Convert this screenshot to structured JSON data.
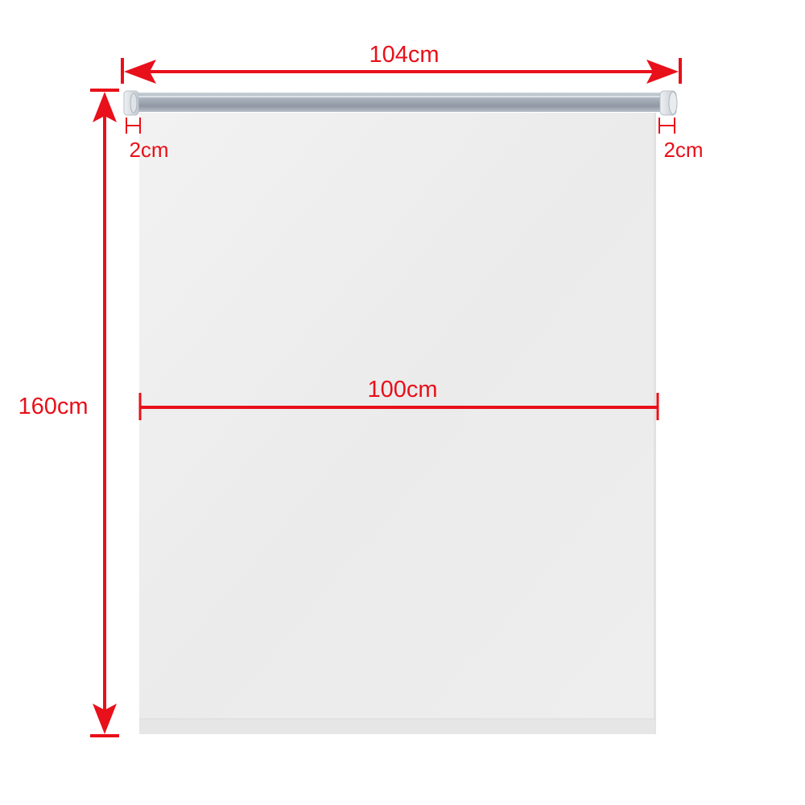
{
  "dimensions": {
    "total_width": "104cm",
    "left_margin": "2cm",
    "right_margin": "2cm",
    "fabric_width": "100cm",
    "height": "160cm"
  },
  "colors": {
    "dimension_line": "#e8101a",
    "fabric": "#ececec",
    "fabric_edge": "#dcdcdc",
    "roller": "#9aa3ad",
    "bracket": "#d9dde2"
  }
}
